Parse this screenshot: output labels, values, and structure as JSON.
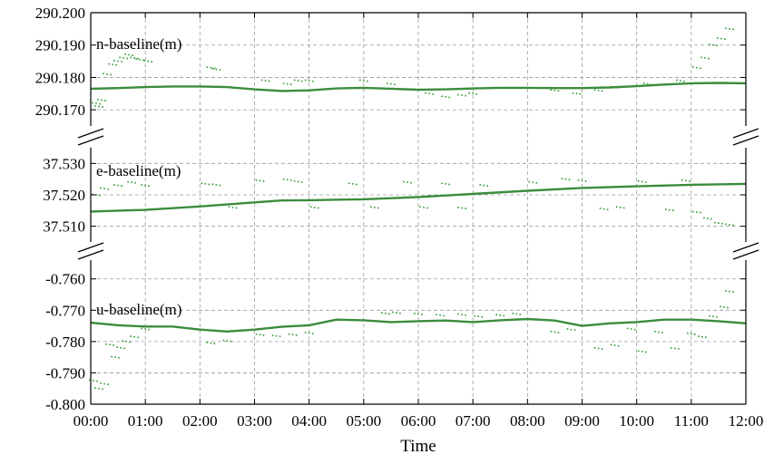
{
  "chart_data": {
    "type": "scatter",
    "xlabel": "Time",
    "x_tick_labels": [
      "00:00",
      "01:00",
      "02:00",
      "03:00",
      "04:00",
      "05:00",
      "06:00",
      "07:00",
      "08:00",
      "09:00",
      "10:00",
      "11:00",
      "12:00"
    ],
    "x_range_hours": [
      0,
      12
    ],
    "grid": true,
    "colors": {
      "trend": "#3c8c3c",
      "scatter": "#2e9a2e",
      "frame": "#000000",
      "grid": "#9a9a9a"
    },
    "panels": [
      {
        "label": "n-baseline(m)",
        "ylim": [
          290.165,
          290.2
        ],
        "y_ticks": [
          290.17,
          290.18,
          290.19,
          290.2
        ],
        "y_tick_labels": [
          "290.170",
          "290.180",
          "290.190",
          "290.200"
        ],
        "trend": {
          "x": [
            0.0,
            0.5,
            1.0,
            1.5,
            2.0,
            2.5,
            3.0,
            3.5,
            4.0,
            4.5,
            5.0,
            5.5,
            6.0,
            6.5,
            7.0,
            7.5,
            8.0,
            8.5,
            9.0,
            9.5,
            10.0,
            10.5,
            11.0,
            11.5,
            12.0
          ],
          "y": [
            290.1765,
            290.1767,
            290.177,
            290.1772,
            290.1772,
            290.177,
            290.1763,
            290.1758,
            290.176,
            290.1766,
            290.1768,
            290.1765,
            290.1762,
            290.1763,
            290.1766,
            290.1768,
            290.1768,
            290.1767,
            290.1767,
            290.1769,
            290.1773,
            290.1778,
            290.1782,
            290.1783,
            290.1782
          ]
        },
        "scatter": {
          "x": [
            0.1,
            0.15,
            0.2,
            0.3,
            0.4,
            0.5,
            0.6,
            0.7,
            0.8,
            0.9,
            1.05,
            2.2,
            2.3,
            3.2,
            3.6,
            3.8,
            4.0,
            5.0,
            5.5,
            6.2,
            6.5,
            6.8,
            7.0,
            8.5,
            8.9,
            9.3,
            9.6,
            10.2,
            10.8,
            11.1,
            11.25,
            11.4,
            11.55,
            11.7
          ],
          "y": [
            290.172,
            290.171,
            290.173,
            290.181,
            290.184,
            290.185,
            290.186,
            290.187,
            290.186,
            290.1855,
            290.185,
            290.183,
            290.1825,
            290.179,
            290.178,
            290.179,
            290.179,
            290.179,
            290.178,
            290.175,
            290.174,
            290.1745,
            290.175,
            290.176,
            290.175,
            290.176,
            290.177,
            290.178,
            290.179,
            290.183,
            290.186,
            290.19,
            290.192,
            290.195
          ]
        }
      },
      {
        "label": "e-baseline(m)",
        "ylim": [
          37.505,
          37.535
        ],
        "y_ticks": [
          37.51,
          37.52,
          37.53
        ],
        "y_tick_labels": [
          "37.510",
          "37.520",
          "37.530"
        ],
        "trend": {
          "x": [
            0.0,
            1.0,
            2.0,
            3.0,
            3.5,
            4.0,
            5.0,
            6.0,
            7.0,
            8.0,
            9.0,
            10.0,
            11.0,
            12.0
          ],
          "y": [
            37.5147,
            37.5152,
            37.5163,
            37.5176,
            37.5182,
            37.5183,
            37.5186,
            37.5193,
            37.5203,
            37.5213,
            37.5222,
            37.5227,
            37.5232,
            37.5235
          ]
        },
        "scatter": {
          "x": [
            0.1,
            0.25,
            0.5,
            0.75,
            1.0,
            2.1,
            2.3,
            2.6,
            3.1,
            3.6,
            3.8,
            4.1,
            4.8,
            5.2,
            5.8,
            6.1,
            6.5,
            6.8,
            7.2,
            8.1,
            8.7,
            9.0,
            9.4,
            9.7,
            10.1,
            10.6,
            10.9,
            11.1,
            11.3,
            11.5,
            11.7
          ],
          "y": [
            37.52,
            37.522,
            37.523,
            37.524,
            37.523,
            37.5235,
            37.5232,
            37.516,
            37.5245,
            37.5248,
            37.5242,
            37.516,
            37.5235,
            37.516,
            37.524,
            37.516,
            37.5235,
            37.5158,
            37.523,
            37.524,
            37.525,
            37.5245,
            37.5155,
            37.516,
            37.5242,
            37.5152,
            37.5245,
            37.5145,
            37.5125,
            37.511,
            37.5105
          ]
        }
      },
      {
        "label": "u-baseline(m)",
        "ylim": [
          -0.8,
          -0.754
        ],
        "y_ticks": [
          -0.8,
          -0.79,
          -0.78,
          -0.77,
          -0.76
        ],
        "y_tick_labels": [
          "-0.800",
          "-0.790",
          "-0.780",
          "-0.770",
          "-0.760"
        ],
        "trend": {
          "x": [
            0.0,
            0.5,
            1.0,
            1.5,
            2.0,
            2.5,
            3.0,
            3.5,
            4.0,
            4.5,
            5.0,
            5.5,
            6.0,
            6.5,
            7.0,
            7.5,
            8.0,
            8.5,
            9.0,
            9.5,
            10.0,
            10.5,
            11.0,
            11.5,
            12.0
          ],
          "y": [
            -0.774,
            -0.7748,
            -0.7752,
            -0.7752,
            -0.7762,
            -0.7768,
            -0.7762,
            -0.7753,
            -0.7748,
            -0.773,
            -0.7732,
            -0.7738,
            -0.7735,
            -0.7733,
            -0.7738,
            -0.7732,
            -0.7728,
            -0.7733,
            -0.775,
            -0.7742,
            -0.7738,
            -0.773,
            -0.773,
            -0.7735,
            -0.7742
          ]
        },
        "scatter": {
          "x": [
            0.05,
            0.15,
            0.25,
            0.35,
            0.45,
            0.55,
            0.65,
            0.8,
            1.0,
            2.2,
            2.5,
            3.1,
            3.4,
            3.7,
            4.0,
            5.4,
            5.6,
            6.0,
            6.4,
            6.8,
            7.1,
            7.5,
            7.8,
            8.5,
            8.8,
            9.3,
            9.6,
            9.9,
            10.1,
            10.4,
            10.7,
            11.0,
            11.2,
            11.4,
            11.6,
            11.7
          ],
          "y": [
            -0.7925,
            -0.795,
            -0.7935,
            -0.781,
            -0.785,
            -0.782,
            -0.78,
            -0.7785,
            -0.776,
            -0.7805,
            -0.7798,
            -0.7778,
            -0.7782,
            -0.7778,
            -0.7773,
            -0.771,
            -0.7708,
            -0.7712,
            -0.7716,
            -0.7714,
            -0.772,
            -0.7716,
            -0.7712,
            -0.777,
            -0.7762,
            -0.7822,
            -0.7812,
            -0.776,
            -0.7832,
            -0.777,
            -0.7822,
            -0.7775,
            -0.7785,
            -0.772,
            -0.769,
            -0.764
          ]
        }
      }
    ]
  }
}
